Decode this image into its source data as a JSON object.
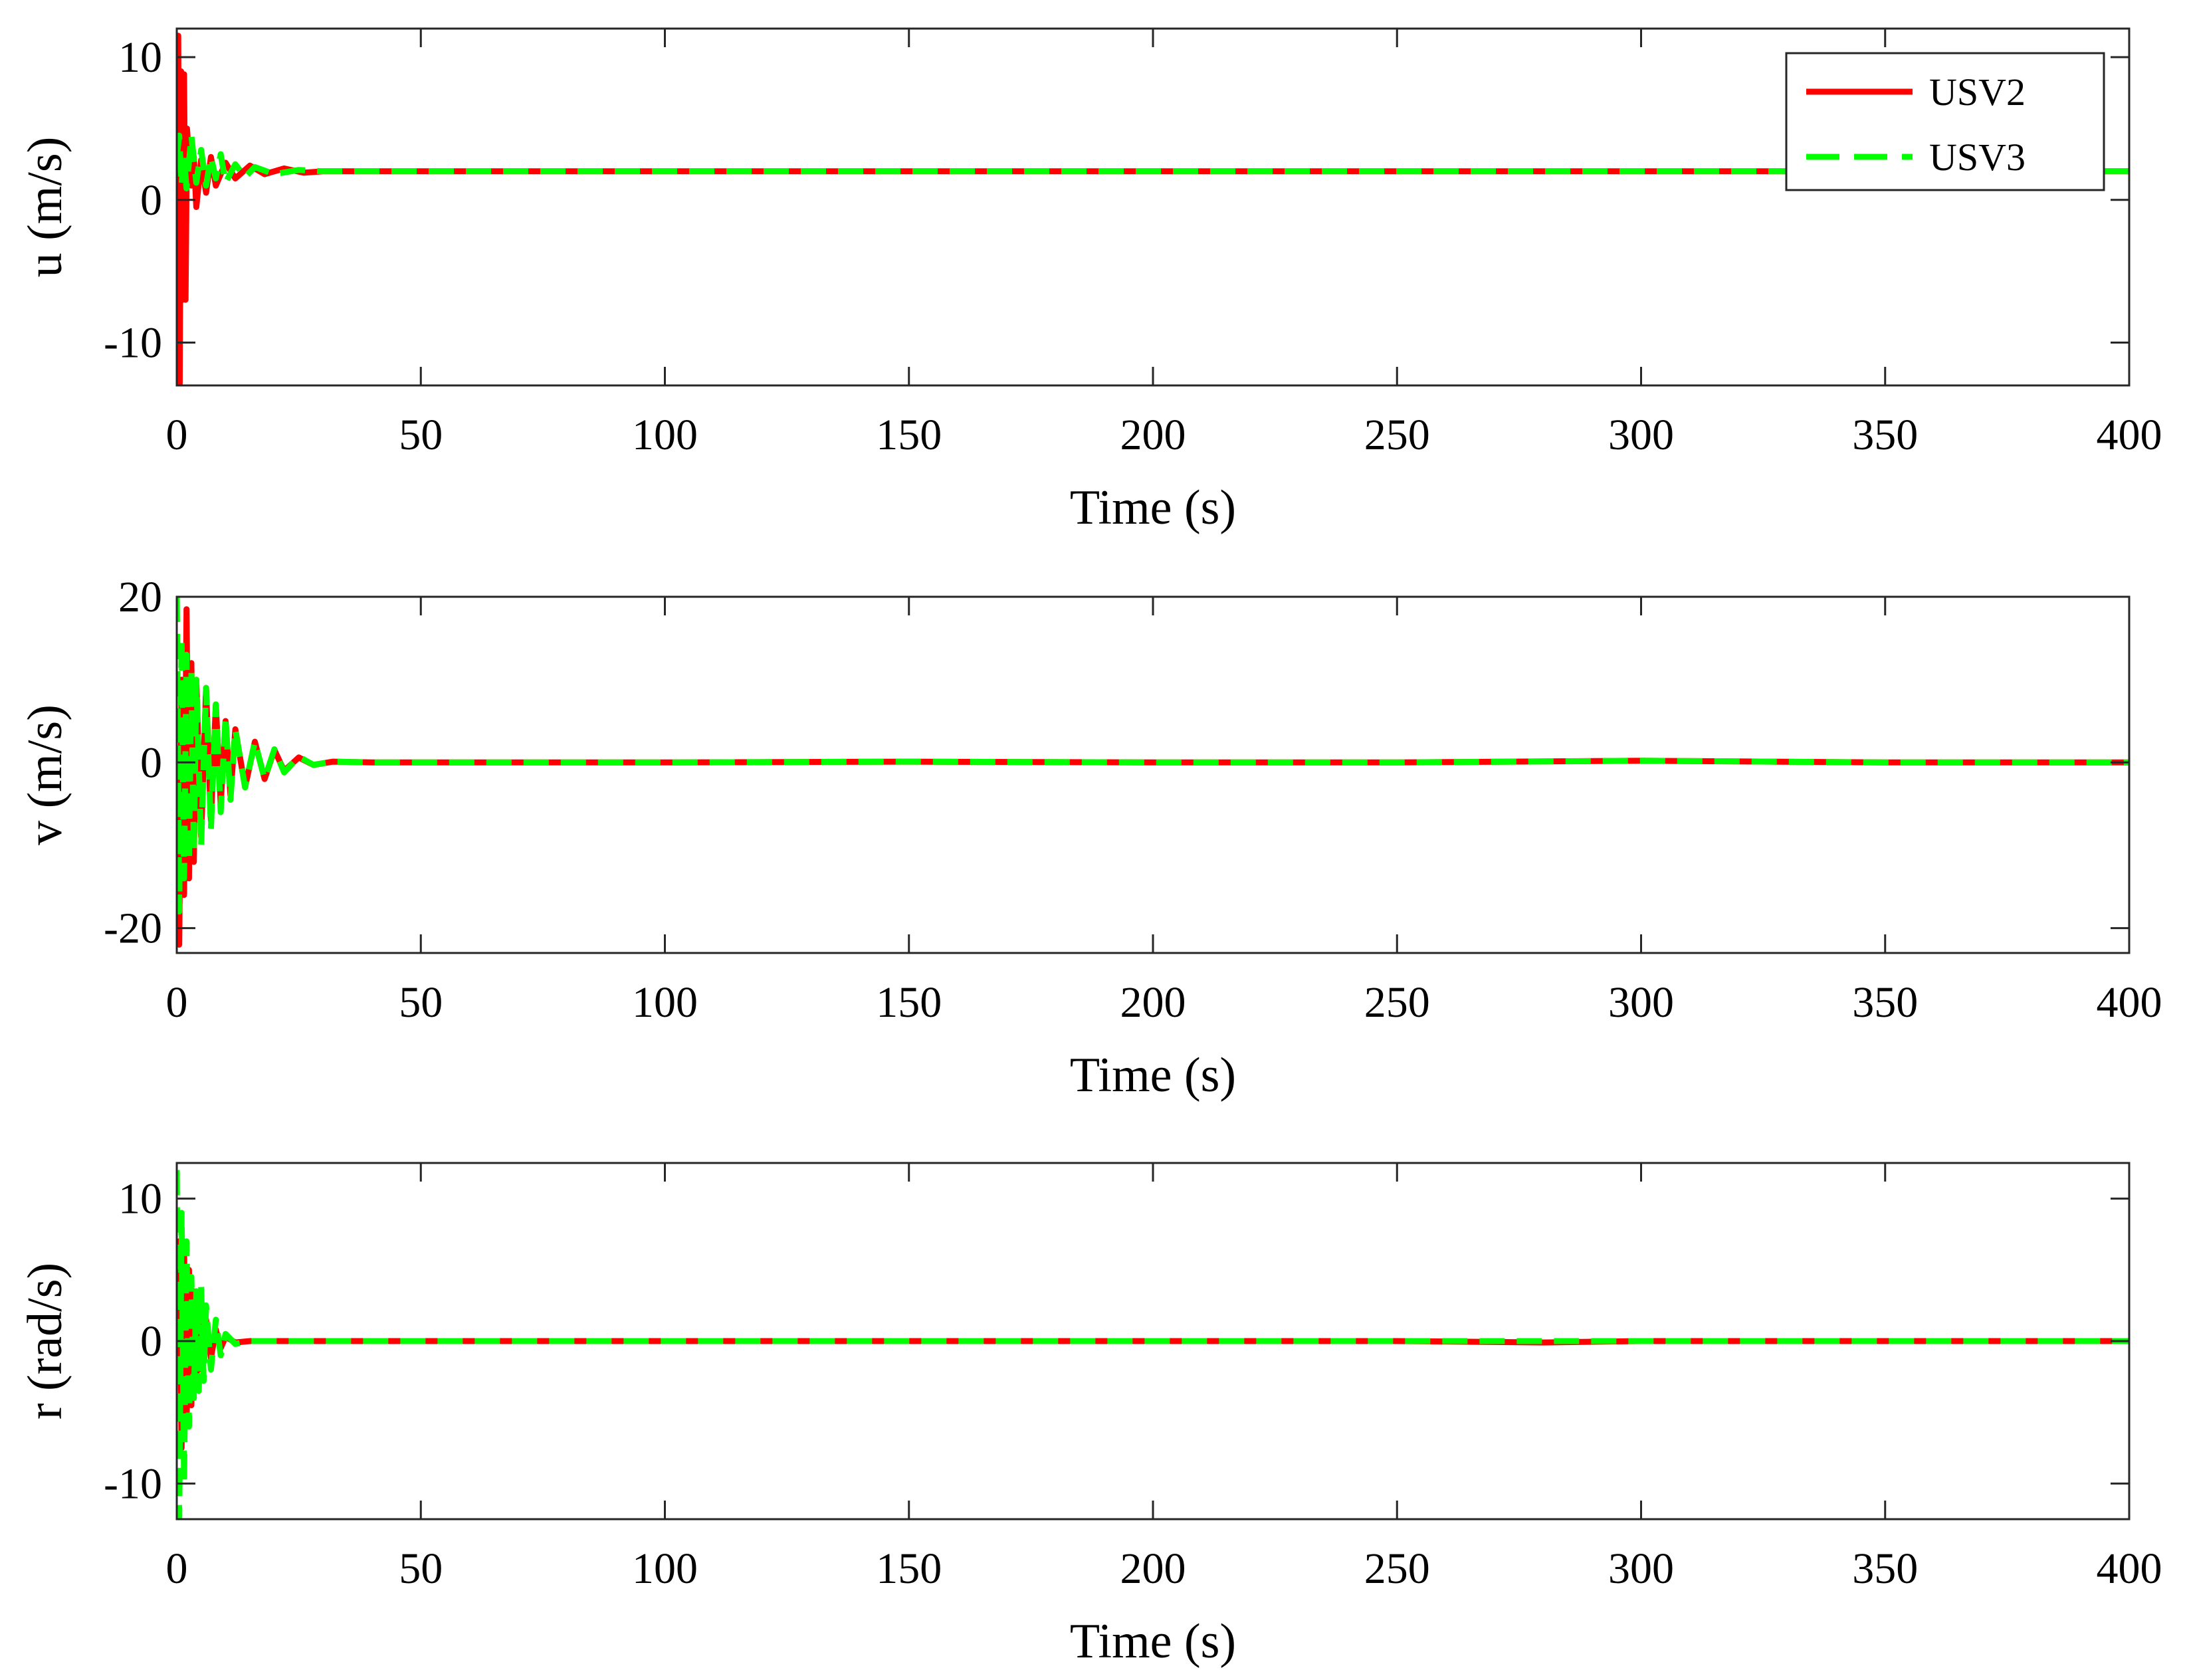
{
  "chart_data": [
    {
      "type": "line",
      "ylabel": "u (m/s)",
      "xlabel": "Time (s)",
      "xlim": [
        0,
        400
      ],
      "ylim": [
        -13,
        12
      ],
      "xticks": [
        0,
        50,
        100,
        150,
        200,
        250,
        300,
        350,
        400
      ],
      "xtick_labels": [
        "0",
        "50",
        "100",
        "150",
        "200",
        "250",
        "300",
        "350",
        "400"
      ],
      "yticks": [
        10,
        0,
        -10
      ],
      "ytick_labels": [
        "10",
        "0",
        "-10"
      ],
      "legend": {
        "position": "top-right",
        "entries": [
          "USV2",
          "USV3"
        ]
      },
      "series": [
        {
          "name": "USV2",
          "color": "#ff0000",
          "style": "solid",
          "x": [
            0,
            0.3,
            0.6,
            0.9,
            1.2,
            1.5,
            1.8,
            2.1,
            2.5,
            3,
            3.5,
            4,
            5,
            6,
            7,
            8,
            10,
            12,
            15,
            18,
            22,
            26,
            30,
            50,
            100,
            150,
            200,
            250,
            300,
            350,
            400
          ],
          "values": [
            0,
            11.5,
            -13,
            9,
            -7,
            8.8,
            -7,
            5,
            3,
            1,
            3,
            -0.5,
            2.8,
            0.5,
            3,
            1,
            2.6,
            1.5,
            2.4,
            1.8,
            2.2,
            1.9,
            2.0,
            2.0,
            2.0,
            2.0,
            2.0,
            2.0,
            2.0,
            2.0,
            2.0
          ]
        },
        {
          "name": "USV3",
          "color": "#00ff00",
          "style": "dashed",
          "x": [
            0,
            0.5,
            1,
            1.5,
            2,
            3,
            4,
            5,
            6,
            7,
            8,
            9,
            10,
            12,
            14,
            16,
            20,
            25,
            30,
            50,
            100,
            150,
            200,
            250,
            300,
            350,
            400
          ],
          "values": [
            3,
            4.5,
            1,
            3,
            0.8,
            4.5,
            1.2,
            3.5,
            1,
            3,
            1.5,
            3.2,
            1.2,
            2.5,
            1.6,
            2.3,
            1.8,
            2.1,
            2.0,
            2.0,
            2.0,
            2.0,
            2.0,
            2.0,
            2.0,
            2.0,
            2.0
          ]
        }
      ]
    },
    {
      "type": "line",
      "ylabel": "v (m/s)",
      "xlabel": "Time (s)",
      "xlim": [
        0,
        400
      ],
      "ylim": [
        -23,
        20
      ],
      "xticks": [
        0,
        50,
        100,
        150,
        200,
        250,
        300,
        350,
        400
      ],
      "xtick_labels": [
        "0",
        "50",
        "100",
        "150",
        "200",
        "250",
        "300",
        "350",
        "400"
      ],
      "yticks": [
        20,
        0,
        -20
      ],
      "ytick_labels": [
        "20",
        "0",
        "-20"
      ],
      "series": [
        {
          "name": "USV2",
          "color": "#ff0000",
          "style": "solid",
          "x": [
            0,
            0.5,
            1,
            1.5,
            2,
            2.5,
            3,
            3.5,
            4,
            5,
            6,
            7,
            8,
            9,
            10,
            11,
            12,
            14,
            16,
            18,
            20,
            22,
            25,
            28,
            32,
            40,
            100,
            150,
            200,
            250,
            300,
            350,
            400
          ],
          "values": [
            0,
            -22,
            10,
            -16,
            18.5,
            -14,
            12,
            -12,
            10,
            -9,
            9,
            -7,
            7,
            -5,
            5,
            -4,
            4,
            -3,
            2.5,
            -2,
            1.5,
            -1,
            0.6,
            -0.3,
            0.1,
            0,
            0,
            0.1,
            0,
            0,
            0.2,
            0,
            0
          ]
        },
        {
          "name": "USV3",
          "color": "#00ff00",
          "style": "dashed",
          "x": [
            0,
            0.5,
            1,
            1.5,
            2,
            2.5,
            3,
            3.5,
            4,
            5,
            6,
            7,
            8,
            9,
            10,
            11,
            12,
            14,
            16,
            18,
            20,
            22,
            25,
            28,
            32,
            40,
            100,
            150,
            200,
            250,
            300,
            350,
            400
          ],
          "values": [
            20,
            -18,
            15,
            -14,
            13,
            -12,
            11,
            -11,
            10,
            -10,
            9,
            -8,
            7,
            -6,
            5.5,
            -4.5,
            4,
            -3,
            2.5,
            -2,
            1.6,
            -1.2,
            0.7,
            -0.3,
            0.1,
            0,
            0,
            0.1,
            0,
            0,
            0.2,
            0,
            0
          ]
        }
      ]
    },
    {
      "type": "line",
      "ylabel": "r (rad/s)",
      "xlabel": "Time (s)",
      "xlim": [
        0,
        400
      ],
      "ylim": [
        -12.5,
        12.5
      ],
      "xticks": [
        0,
        50,
        100,
        150,
        200,
        250,
        300,
        350,
        400
      ],
      "xtick_labels": [
        "0",
        "50",
        "100",
        "150",
        "200",
        "250",
        "300",
        "350",
        "400"
      ],
      "yticks": [
        10,
        0,
        -10
      ],
      "ytick_labels": [
        "10",
        "0",
        "-10"
      ],
      "series": [
        {
          "name": "USV2",
          "color": "#ff0000",
          "style": "solid",
          "x": [
            0,
            0.5,
            1,
            1.5,
            2,
            2.5,
            3,
            3.5,
            4,
            4.5,
            5,
            6,
            7,
            8,
            9,
            10,
            12,
            15,
            20,
            100,
            200,
            250,
            280,
            300,
            350,
            400
          ],
          "values": [
            0,
            7,
            -7.5,
            6.5,
            -6,
            5,
            -4.5,
            3.5,
            -3,
            2.5,
            -2,
            1.5,
            -1.2,
            0.8,
            -0.5,
            0.3,
            -0.1,
            0,
            0,
            0,
            0,
            0,
            -0.1,
            0,
            0,
            0
          ]
        },
        {
          "name": "USV3",
          "color": "#00ff00",
          "style": "dashed",
          "x": [
            0,
            0.5,
            1,
            1.5,
            2,
            2.5,
            3,
            3.5,
            4,
            4.5,
            5,
            5.5,
            6,
            7,
            8,
            9,
            10,
            12,
            15,
            20,
            100,
            200,
            300,
            400
          ],
          "values": [
            12,
            -12.5,
            9,
            -10,
            7,
            -6,
            4.5,
            -4,
            3.5,
            -3.5,
            3.8,
            -2.8,
            2.5,
            -2,
            1.5,
            -1,
            0.5,
            -0.2,
            0,
            0,
            0,
            0,
            0,
            0
          ]
        }
      ]
    }
  ]
}
